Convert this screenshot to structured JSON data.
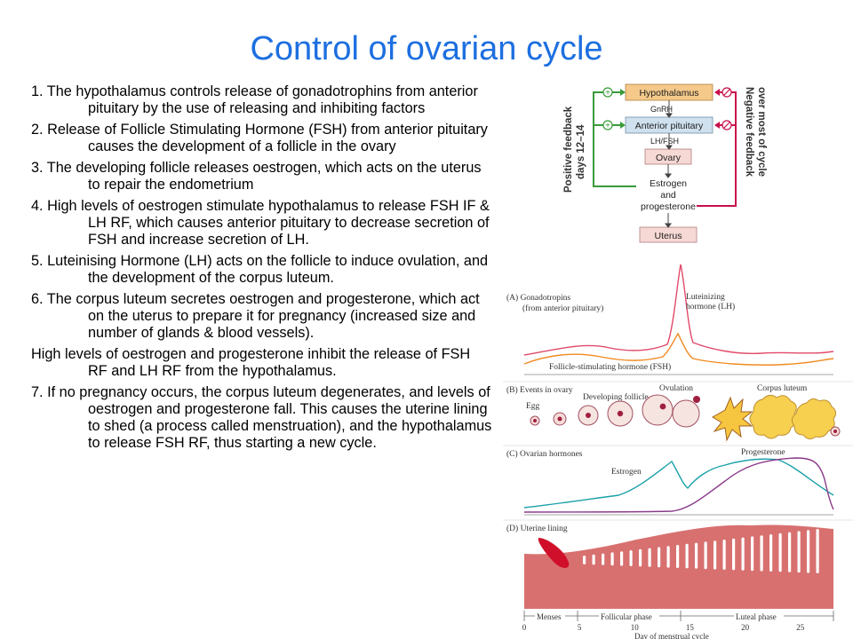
{
  "title": "Control of ovarian cycle",
  "paragraphs": [
    "1. The hypothalamus controls release of gonadotrophins from anterior pituitary by the use of releasing and inhibiting factors",
    "2. Release of Follicle Stimulating Hormone (FSH) from anterior pituitary causes the development of a follicle in the ovary",
    "3. The developing follicle releases oestrogen, which acts on the uterus to repair the endometrium",
    "4. High levels of oestrogen stimulate hypothalamus to release FSH IF & LH RF, which causes anterior pituitary to decrease secretion of FSH and increase secretion of LH.",
    "5. Luteinising Hormone (LH) acts on the follicle to induce ovulation, and the development of the corpus luteum.",
    "6. The corpus luteum secretes oestrogen and progesterone, which act on the uterus to prepare it for pregnancy (increased size and number of glands & blood vessels).",
    "High levels of oestrogen and progesterone inhibit the release of FSH RF and LH RF from the hypothalamus.",
    "7. If no pregnancy occurs, the corpus luteum degenerates, and levels of oestrogen and progesterone fall.  This causes the uterine lining to shed (a process called menstruation), and the hypothalamus to release FSH RF, thus starting a new cycle."
  ],
  "flow": {
    "hypothalamus": "Hypothalamus",
    "gnrh": "GnRH",
    "anterior_pituitary": "Anterior pituitary",
    "lhfsh": "LH/FSH",
    "ovary": "Ovary",
    "estrogen": "Estrogen",
    "and": "and",
    "progesterone": "progesterone",
    "uterus": "Uterus",
    "pos1": "Positive feedback",
    "pos2": "days 12–14",
    "neg1": "Negative feedback",
    "neg2": "over most of cycle",
    "box_color": "#f4c98a",
    "ap_color": "#cfe0ee",
    "pos_color": "#3a9a3a",
    "neg_color": "#c8104a"
  },
  "graph": {
    "a_label": "(A)  Gonadotropins",
    "a_label2": "(from anterior pituitary)",
    "lh_label": "Luteinizing",
    "lh_label2": "hormone (LH)",
    "fsh_label": "Follicle-stimulating hormone (FSH)",
    "b_label": "(B)  Events in ovary",
    "egg": "Egg",
    "dev_follicle": "Developing follicle",
    "ovulation": "Ovulation",
    "corpus_luteum": "Corpus luteum",
    "c_label": "(C)  Ovarian hormones",
    "estrogen": "Estrogen",
    "progesterone": "Progesterone",
    "d_label": "(D)  Uterine lining",
    "menses": "Menses",
    "follicular": "Follicular phase",
    "luteal": "Luteal phase",
    "xlabel": "Day of menstrual cycle",
    "ticks": [
      "0",
      "5",
      "10",
      "15",
      "20",
      "25"
    ],
    "lh_color": "#e04a6a",
    "fsh_color": "#f08a20",
    "estrogen_color": "#1aa0a8",
    "progesterone_color": "#8a3a8a"
  }
}
